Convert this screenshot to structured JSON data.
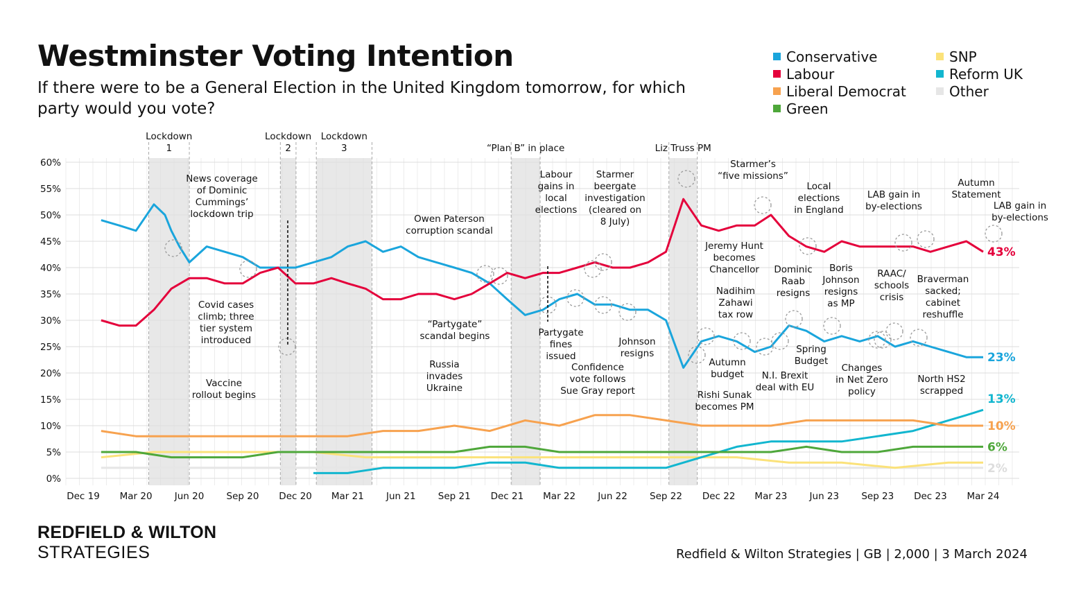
{
  "header": {
    "title": "Westminster Voting Intention",
    "subtitle": "If there were to be a General Election in the United Kingdom tomorrow, for which party would you vote?"
  },
  "legend": [
    {
      "label": "Conservative",
      "color": "#1aa5dc"
    },
    {
      "label": "Labour",
      "color": "#e4003b"
    },
    {
      "label": "Liberal Democrat",
      "color": "#f7a24f"
    },
    {
      "label": "Green",
      "color": "#4ea73a"
    },
    {
      "label": "SNP",
      "color": "#fbe27a"
    },
    {
      "label": "Reform UK",
      "color": "#12b6cf"
    },
    {
      "label": "Other",
      "color": "#e6e6e6"
    }
  ],
  "footer": {
    "brand_line1": "REDFIELD & WILTON",
    "brand_line2": "STRATEGIES",
    "source": "Redfield & Wilton Strategies | GB | 2,000 | 3 March 2024"
  },
  "chart_data": {
    "type": "line",
    "title": "Westminster Voting Intention",
    "xlabel": "",
    "ylabel": "",
    "ylim": [
      0,
      60
    ],
    "y_ticks": [
      "0%",
      "5%",
      "10%",
      "15%",
      "20%",
      "25%",
      "30%",
      "35%",
      "40%",
      "45%",
      "50%",
      "55%",
      "60%"
    ],
    "x_tick_labels": [
      "Dec 19",
      "Mar 20",
      "Jun 20",
      "Sep 20",
      "Dec 20",
      "Mar 21",
      "Jun 21",
      "Sep 21",
      "Dec 21",
      "Mar 22",
      "Jun 22",
      "Sep 22",
      "Dec 22",
      "Mar 23",
      "Jun 23",
      "Sep 23",
      "Dec 23",
      "Mar 24"
    ],
    "x_tick_dates": [
      "2019-12",
      "2020-03",
      "2020-06",
      "2020-09",
      "2020-12",
      "2021-03",
      "2021-06",
      "2021-09",
      "2021-12",
      "2022-03",
      "2022-06",
      "2022-09",
      "2022-12",
      "2023-03",
      "2023-06",
      "2023-09",
      "2023-12",
      "2024-03"
    ],
    "x_range": [
      "2019-12",
      "2024-05"
    ],
    "grid": true,
    "legend_position": "top-right",
    "shaded_periods": [
      {
        "label": "Lockdown 1",
        "start": "2020-03-23",
        "end": "2020-06-01"
      },
      {
        "label": "Lockdown 2",
        "start": "2020-11-05",
        "end": "2020-12-02"
      },
      {
        "label": "Lockdown 3",
        "start": "2021-01-06",
        "end": "2021-04-12"
      },
      {
        "label": "“Plan B” in place",
        "start": "2021-12-08",
        "end": "2022-01-27"
      },
      {
        "label": "Liz Truss PM",
        "start": "2022-09-06",
        "end": "2022-10-25"
      }
    ],
    "series": [
      {
        "name": "Conservative",
        "color": "#1aa5dc",
        "end_label": "23%",
        "points": [
          [
            "2020-01",
            49
          ],
          [
            "2020-02",
            48
          ],
          [
            "2020-03",
            47
          ],
          [
            "2020-04",
            52
          ],
          [
            "2020-04-20",
            50
          ],
          [
            "2020-05",
            47
          ],
          [
            "2020-05-15",
            44
          ],
          [
            "2020-06",
            41
          ],
          [
            "2020-07",
            44
          ],
          [
            "2020-08",
            43
          ],
          [
            "2020-09",
            42
          ],
          [
            "2020-10",
            40
          ],
          [
            "2020-11",
            40
          ],
          [
            "2020-12",
            40
          ],
          [
            "2021-01",
            41
          ],
          [
            "2021-02",
            42
          ],
          [
            "2021-03",
            44
          ],
          [
            "2021-04",
            45
          ],
          [
            "2021-05",
            43
          ],
          [
            "2021-06",
            44
          ],
          [
            "2021-07",
            42
          ],
          [
            "2021-08",
            41
          ],
          [
            "2021-09",
            40
          ],
          [
            "2021-10",
            39
          ],
          [
            "2021-11",
            37
          ],
          [
            "2021-12",
            34
          ],
          [
            "2022-01",
            31
          ],
          [
            "2022-02",
            32
          ],
          [
            "2022-03",
            34
          ],
          [
            "2022-04",
            35
          ],
          [
            "2022-05",
            33
          ],
          [
            "2022-06",
            33
          ],
          [
            "2022-07",
            32
          ],
          [
            "2022-08",
            32
          ],
          [
            "2022-09",
            30
          ],
          [
            "2022-10",
            21
          ],
          [
            "2022-11",
            26
          ],
          [
            "2022-12",
            27
          ],
          [
            "2023-01",
            26
          ],
          [
            "2023-02",
            24
          ],
          [
            "2023-03",
            25
          ],
          [
            "2023-04",
            29
          ],
          [
            "2023-05",
            28
          ],
          [
            "2023-06",
            26
          ],
          [
            "2023-07",
            27
          ],
          [
            "2023-08",
            26
          ],
          [
            "2023-09",
            27
          ],
          [
            "2023-10",
            25
          ],
          [
            "2023-11",
            26
          ],
          [
            "2023-12",
            25
          ],
          [
            "2024-01",
            24
          ],
          [
            "2024-02",
            23
          ],
          [
            "2024-03",
            23
          ]
        ]
      },
      {
        "name": "Labour",
        "color": "#e4003b",
        "end_label": "43%",
        "points": [
          [
            "2020-01",
            30
          ],
          [
            "2020-02",
            29
          ],
          [
            "2020-03",
            29
          ],
          [
            "2020-04",
            32
          ],
          [
            "2020-05",
            36
          ],
          [
            "2020-06",
            38
          ],
          [
            "2020-07",
            38
          ],
          [
            "2020-08",
            37
          ],
          [
            "2020-09",
            37
          ],
          [
            "2020-10",
            39
          ],
          [
            "2020-11",
            40
          ],
          [
            "2020-12",
            37
          ],
          [
            "2021-01",
            37
          ],
          [
            "2021-02",
            38
          ],
          [
            "2021-03",
            37
          ],
          [
            "2021-04",
            36
          ],
          [
            "2021-05",
            34
          ],
          [
            "2021-06",
            34
          ],
          [
            "2021-07",
            35
          ],
          [
            "2021-08",
            35
          ],
          [
            "2021-09",
            34
          ],
          [
            "2021-10",
            35
          ],
          [
            "2021-11",
            37
          ],
          [
            "2021-12",
            39
          ],
          [
            "2022-01",
            38
          ],
          [
            "2022-02",
            39
          ],
          [
            "2022-03",
            39
          ],
          [
            "2022-04",
            40
          ],
          [
            "2022-05",
            41
          ],
          [
            "2022-06",
            40
          ],
          [
            "2022-07",
            40
          ],
          [
            "2022-08",
            41
          ],
          [
            "2022-09",
            43
          ],
          [
            "2022-10",
            53
          ],
          [
            "2022-11",
            48
          ],
          [
            "2022-12",
            47
          ],
          [
            "2023-01",
            48
          ],
          [
            "2023-02",
            48
          ],
          [
            "2023-03",
            50
          ],
          [
            "2023-04",
            46
          ],
          [
            "2023-05",
            44
          ],
          [
            "2023-06",
            43
          ],
          [
            "2023-07",
            45
          ],
          [
            "2023-08",
            44
          ],
          [
            "2023-09",
            44
          ],
          [
            "2023-10",
            44
          ],
          [
            "2023-11",
            44
          ],
          [
            "2023-12",
            43
          ],
          [
            "2024-01",
            44
          ],
          [
            "2024-02",
            45
          ],
          [
            "2024-03",
            43
          ]
        ]
      },
      {
        "name": "Liberal Democrat",
        "color": "#f7a24f",
        "end_label": "10%",
        "points": [
          [
            "2020-01",
            9
          ],
          [
            "2020-03",
            8
          ],
          [
            "2020-05",
            8
          ],
          [
            "2020-07",
            8
          ],
          [
            "2020-09",
            8
          ],
          [
            "2020-11",
            8
          ],
          [
            "2021-01",
            8
          ],
          [
            "2021-03",
            8
          ],
          [
            "2021-05",
            9
          ],
          [
            "2021-07",
            9
          ],
          [
            "2021-09",
            10
          ],
          [
            "2021-11",
            9
          ],
          [
            "2022-01",
            11
          ],
          [
            "2022-03",
            10
          ],
          [
            "2022-05",
            12
          ],
          [
            "2022-07",
            12
          ],
          [
            "2022-09",
            11
          ],
          [
            "2022-11",
            10
          ],
          [
            "2023-01",
            10
          ],
          [
            "2023-03",
            10
          ],
          [
            "2023-05",
            11
          ],
          [
            "2023-07",
            11
          ],
          [
            "2023-09",
            11
          ],
          [
            "2023-11",
            11
          ],
          [
            "2024-01",
            10
          ],
          [
            "2024-03",
            10
          ]
        ]
      },
      {
        "name": "Green",
        "color": "#4ea73a",
        "end_label": "6%",
        "points": [
          [
            "2020-01",
            5
          ],
          [
            "2020-03",
            5
          ],
          [
            "2020-05",
            4
          ],
          [
            "2020-07",
            4
          ],
          [
            "2020-09",
            4
          ],
          [
            "2020-11",
            5
          ],
          [
            "2021-01",
            5
          ],
          [
            "2021-03",
            5
          ],
          [
            "2021-05",
            5
          ],
          [
            "2021-07",
            5
          ],
          [
            "2021-09",
            5
          ],
          [
            "2021-11",
            6
          ],
          [
            "2022-01",
            6
          ],
          [
            "2022-03",
            5
          ],
          [
            "2022-05",
            5
          ],
          [
            "2022-07",
            5
          ],
          [
            "2022-09",
            5
          ],
          [
            "2022-11",
            5
          ],
          [
            "2023-01",
            5
          ],
          [
            "2023-03",
            5
          ],
          [
            "2023-05",
            6
          ],
          [
            "2023-07",
            5
          ],
          [
            "2023-09",
            5
          ],
          [
            "2023-11",
            6
          ],
          [
            "2024-01",
            6
          ],
          [
            "2024-03",
            6
          ]
        ]
      },
      {
        "name": "SNP",
        "color": "#fbe27a",
        "end_label": "",
        "points": [
          [
            "2020-01",
            4
          ],
          [
            "2020-04",
            5
          ],
          [
            "2020-07",
            5
          ],
          [
            "2020-10",
            5
          ],
          [
            "2021-01",
            5
          ],
          [
            "2021-04",
            4
          ],
          [
            "2021-07",
            4
          ],
          [
            "2021-10",
            4
          ],
          [
            "2022-01",
            4
          ],
          [
            "2022-04",
            4
          ],
          [
            "2022-07",
            4
          ],
          [
            "2022-10",
            4
          ],
          [
            "2023-01",
            4
          ],
          [
            "2023-04",
            3
          ],
          [
            "2023-07",
            3
          ],
          [
            "2023-10",
            2
          ],
          [
            "2024-01",
            3
          ],
          [
            "2024-03",
            3
          ]
        ]
      },
      {
        "name": "Reform UK",
        "color": "#12b6cf",
        "end_label": "13%",
        "points": [
          [
            "2021-01",
            1
          ],
          [
            "2021-03",
            1
          ],
          [
            "2021-05",
            2
          ],
          [
            "2021-07",
            2
          ],
          [
            "2021-09",
            2
          ],
          [
            "2021-11",
            3
          ],
          [
            "2022-01",
            3
          ],
          [
            "2022-03",
            2
          ],
          [
            "2022-05",
            2
          ],
          [
            "2022-07",
            2
          ],
          [
            "2022-09",
            2
          ],
          [
            "2022-11",
            4
          ],
          [
            "2023-01",
            6
          ],
          [
            "2023-03",
            7
          ],
          [
            "2023-05",
            7
          ],
          [
            "2023-07",
            7
          ],
          [
            "2023-09",
            8
          ],
          [
            "2023-11",
            9
          ],
          [
            "2024-01",
            11
          ],
          [
            "2024-02",
            12
          ],
          [
            "2024-03",
            13
          ]
        ]
      },
      {
        "name": "Other",
        "color": "#e6e6e6",
        "end_label": "2%",
        "points": [
          [
            "2020-01",
            2
          ],
          [
            "2020-04",
            2
          ],
          [
            "2020-07",
            2
          ],
          [
            "2020-10",
            2
          ],
          [
            "2021-01",
            2
          ],
          [
            "2021-04",
            2
          ],
          [
            "2021-07",
            2
          ],
          [
            "2021-10",
            2
          ],
          [
            "2022-01",
            2
          ],
          [
            "2022-04",
            2
          ],
          [
            "2022-07",
            2
          ],
          [
            "2022-10",
            2
          ],
          [
            "2023-01",
            2
          ],
          [
            "2023-04",
            2
          ],
          [
            "2023-07",
            2
          ],
          [
            "2023-10",
            2
          ],
          [
            "2024-01",
            2
          ],
          [
            "2024-03",
            2
          ]
        ]
      }
    ],
    "annotations": [
      {
        "text": "News coverage of Dominic Cummings’ lockdown trip",
        "date": "2020-05-26"
      },
      {
        "text": "Covid cases climb; three tier system introduced",
        "date": "2020-10-14"
      },
      {
        "text": "Vaccine rollout begins",
        "date": "2020-12-08"
      },
      {
        "text": "Owen Paterson corruption scandal",
        "date": "2021-11-04"
      },
      {
        "text": "“Partygate” scandal begins",
        "date": "2021-11-30"
      },
      {
        "text": "Russia invades Ukraine",
        "date": "2022-02-24"
      },
      {
        "text": "Labour gains in local elections",
        "date": "2022-05-06"
      },
      {
        "text": "Partygate fines issued",
        "date": "2022-04-12"
      },
      {
        "text": "Starmer beergate investigation (cleared on 8 July)",
        "date": "2022-05-09"
      },
      {
        "text": "Confidence vote follows Sue Gray report",
        "date": "2022-06-06"
      },
      {
        "text": "Johnson resigns",
        "date": "2022-07-07"
      },
      {
        "text": "Jeremy Hunt becomes Chancellor",
        "date": "2022-10-14"
      },
      {
        "text": "Rishi Sunak becomes PM",
        "date": "2022-10-25"
      },
      {
        "text": "Autumn budget",
        "date": "2022-11-17"
      },
      {
        "text": "Nadihim Zahawi tax row",
        "date": "2023-01-29"
      },
      {
        "text": "Starmer’s “five missions”",
        "date": "2023-02-23"
      },
      {
        "text": "N.I. Brexit deal with EU",
        "date": "2023-02-27"
      },
      {
        "text": "Spring Budget",
        "date": "2023-03-15"
      },
      {
        "text": "Dominic Raab resigns",
        "date": "2023-04-21"
      },
      {
        "text": "Local elections in England",
        "date": "2023-05-04"
      },
      {
        "text": "Boris Johnson resigns as MP",
        "date": "2023-06-09"
      },
      {
        "text": "LAB gain in by-elections",
        "date": "2023-07-20"
      },
      {
        "text": "RAAC/ schools crisis",
        "date": "2023-09-01"
      },
      {
        "text": "Changes in Net Zero policy",
        "date": "2023-09-20"
      },
      {
        "text": "North HS2 scrapped",
        "date": "2023-10-04"
      },
      {
        "text": "Autumn Statement",
        "date": "2023-11-22"
      },
      {
        "text": "Braverman sacked; cabinet reshuffle",
        "date": "2023-11-13"
      },
      {
        "text": "LAB gain in by-elections",
        "date": "2024-02-15"
      }
    ]
  }
}
